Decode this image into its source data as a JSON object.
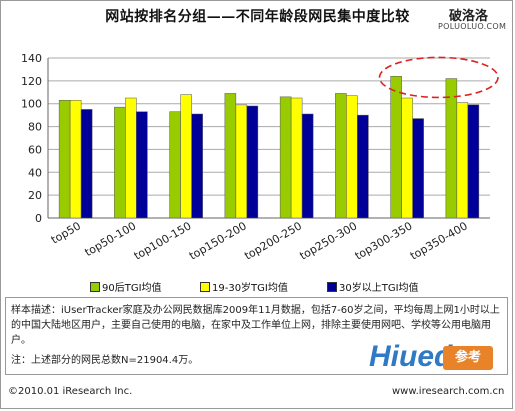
{
  "header": {
    "title": "网站按排名分组——不同年龄段网民集中度比较",
    "watermark_cn": "破洛洛",
    "watermark_url": "POLUOLUO.COM"
  },
  "chart_data": {
    "type": "bar",
    "title": "网站按排名分组——不同年龄段网民集中度比较",
    "xlabel": "",
    "ylabel": "",
    "ylim": [
      0,
      140
    ],
    "yticks": [
      0,
      20,
      40,
      60,
      80,
      100,
      120,
      140
    ],
    "grid": true,
    "legend_position": "bottom",
    "categories": [
      "top50",
      "top50-100",
      "top100-150",
      "top150-200",
      "top200-250",
      "top250-300",
      "top300-350",
      "top350-400"
    ],
    "series": [
      {
        "name": "90后TGI均值",
        "color": "#99cc00",
        "values": [
          103,
          97,
          93,
          109,
          106,
          109,
          124,
          122
        ]
      },
      {
        "name": "19-30岁TGI均值",
        "color": "#ffff00",
        "values": [
          103,
          105,
          108,
          99,
          105,
          107,
          105,
          101
        ]
      },
      {
        "name": "30岁以上TGI均值",
        "color": "#000099",
        "values": [
          95,
          93,
          91,
          98,
          91,
          90,
          87,
          99
        ]
      }
    ],
    "highlight": {
      "shape": "dashed-ellipse",
      "color": "#dd2222",
      "around": [
        "top300-350",
        "top350-400"
      ]
    }
  },
  "notes": {
    "line1": "样本描述：iUserTracker家庭及办公网民数据库2009年11月数据，包括7-60岁之间，平均每周上网1小时以上的中国大陆地区用户，主要自己使用的电脑，在家中及工作单位上网，排除主要使用网吧、学校等公用电脑用户。",
    "line2": "注：上述部分的网民总数N=21904.4万。"
  },
  "brand": {
    "hiued_text": "Hiued",
    "hiued_cn": "参考"
  },
  "footer": {
    "copyright": "©2010.01 iResearch Inc.",
    "website": "www.iresearch.com.cn"
  }
}
